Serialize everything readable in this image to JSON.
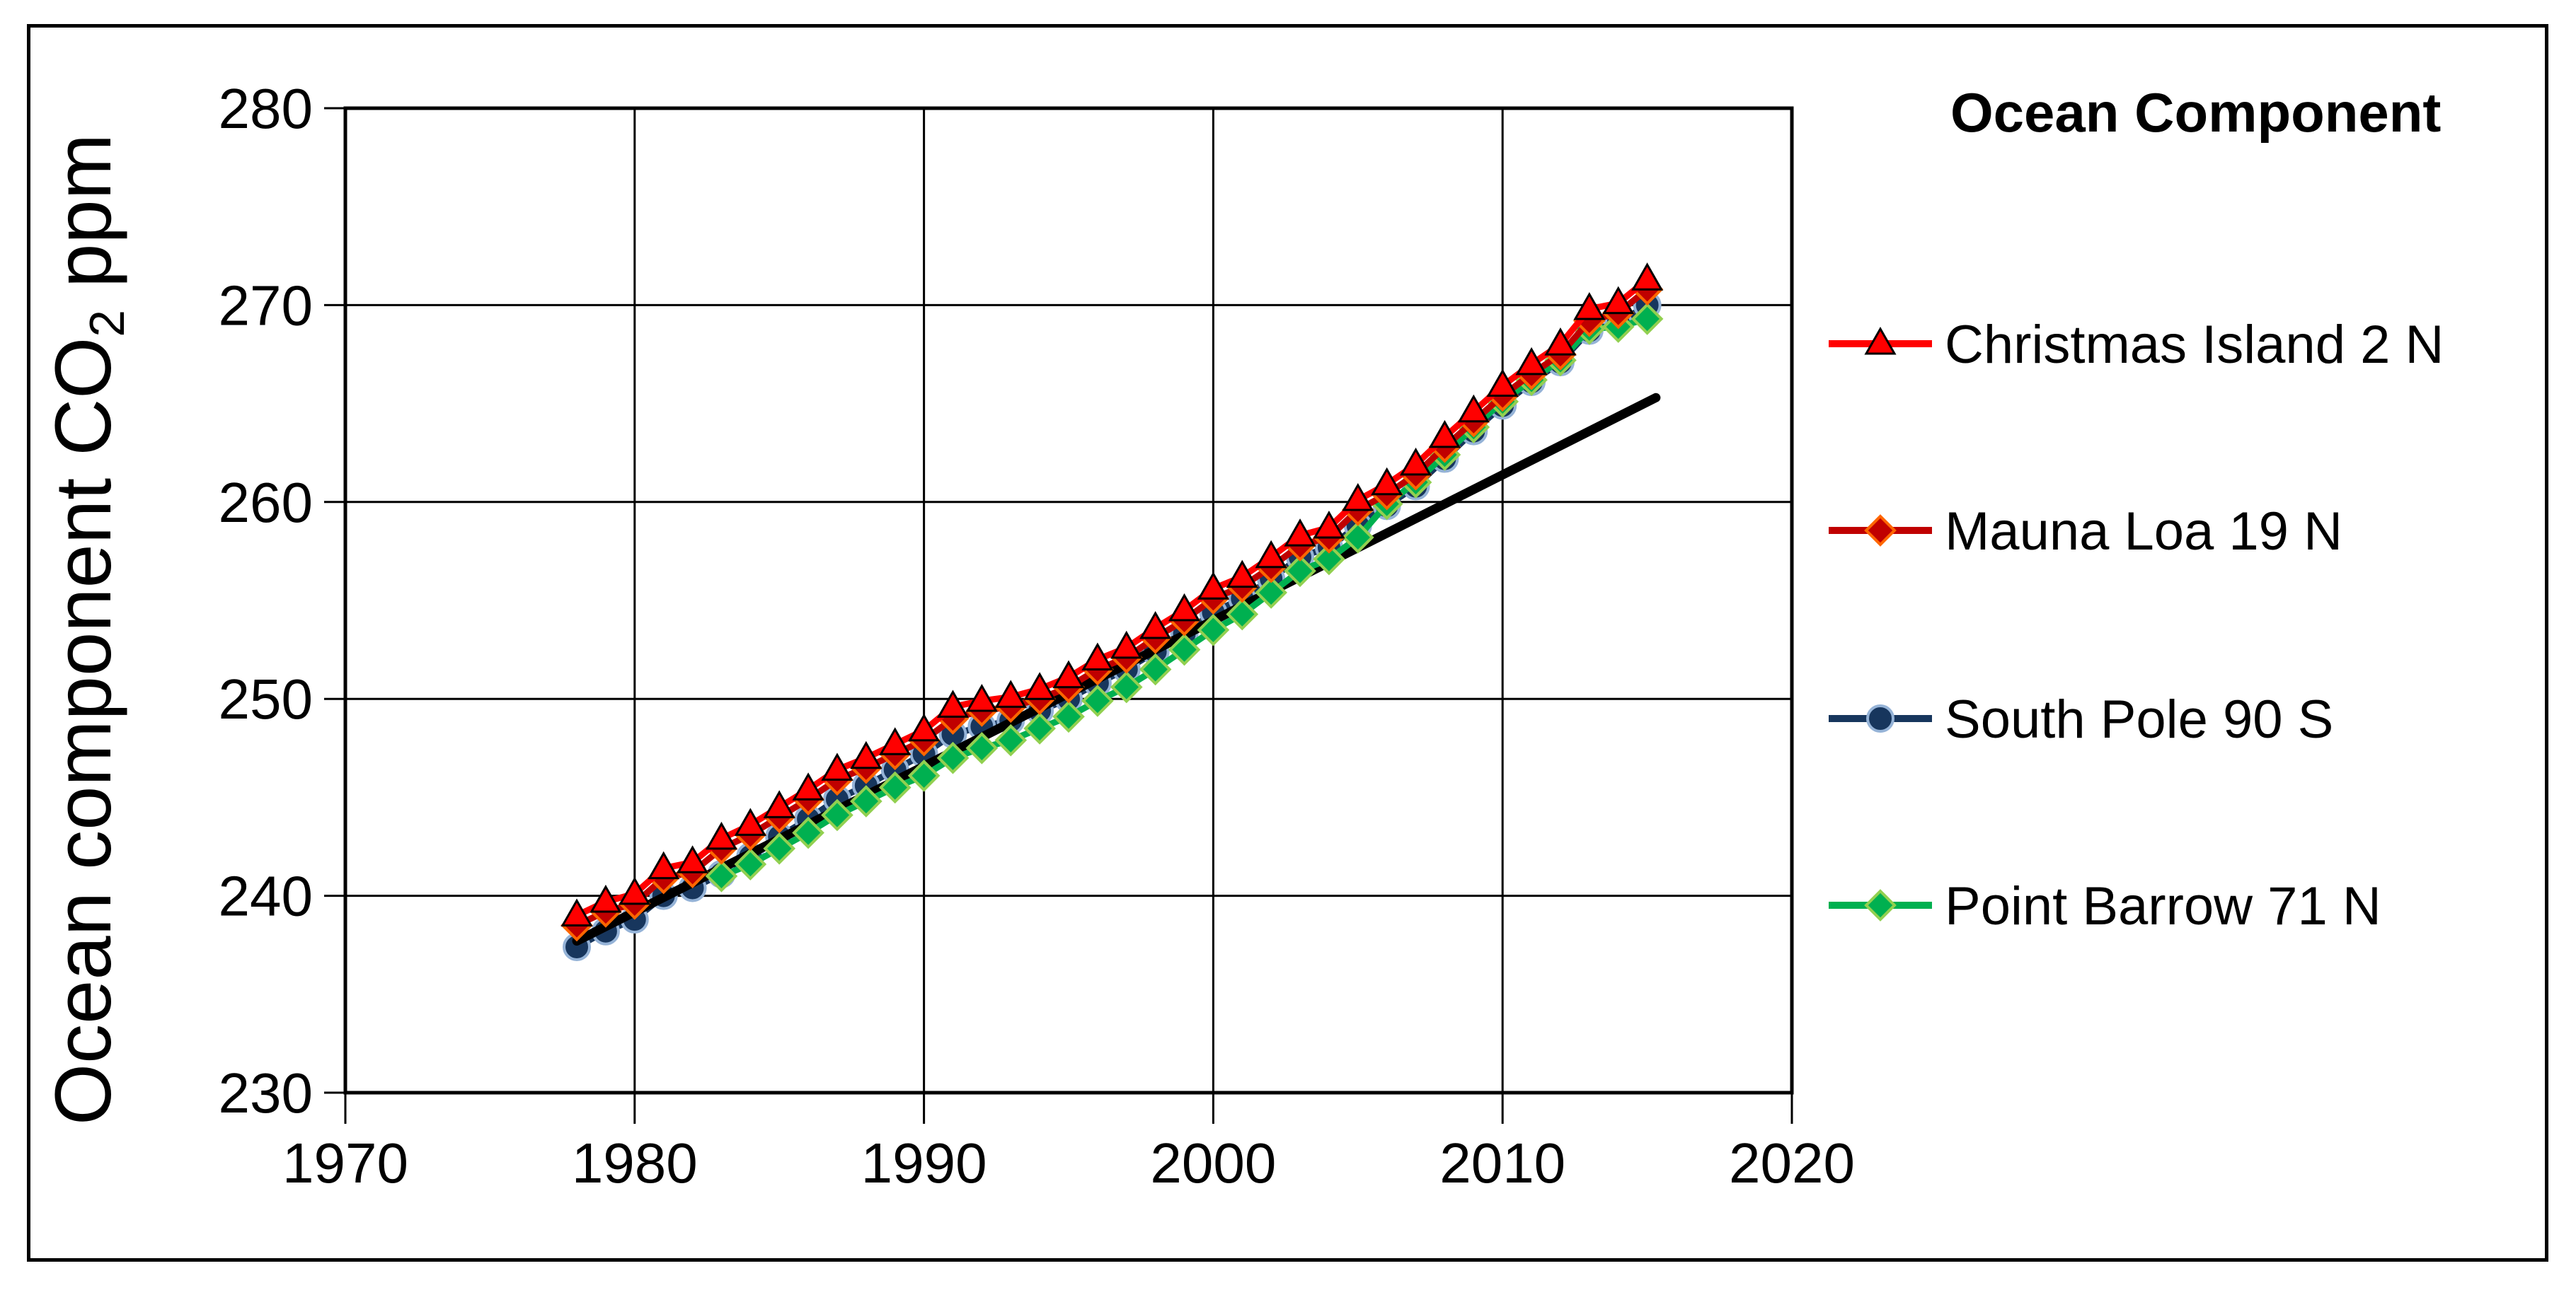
{
  "figure": {
    "background": "#ffffff",
    "border_color": "#000000",
    "y_axis_title_prefix": "Ocean component CO",
    "y_axis_title_sub": "2",
    "y_axis_title_suffix": " ppm"
  },
  "chart_data": {
    "type": "line",
    "legend_title": "Ocean Component",
    "legend_position": "right",
    "grid": true,
    "xlabel": "",
    "ylabel": "Ocean component CO2 ppm",
    "xlim": [
      1970,
      2020
    ],
    "ylim": [
      230,
      280
    ],
    "x_ticks": [
      "1970",
      "1980",
      "1990",
      "2000",
      "2010",
      "2020"
    ],
    "y_ticks": [
      "230",
      "240",
      "250",
      "260",
      "270",
      "280"
    ],
    "x": [
      1978,
      1979,
      1980,
      1981,
      1982,
      1983,
      1984,
      1985,
      1986,
      1987,
      1988,
      1989,
      1990,
      1991,
      1992,
      1993,
      1994,
      1995,
      1996,
      1997,
      1998,
      1999,
      2000,
      2001,
      2002,
      2003,
      2004,
      2005,
      2006,
      2007,
      2008,
      2009,
      2010,
      2011,
      2012,
      2013,
      2014,
      2015
    ],
    "series": [
      {
        "name": "South Pole 90 S",
        "line_color": "#17365D",
        "marker_shape": "circle",
        "marker_fill": "#17365D",
        "marker_edge": "#95B3D7",
        "values": [
          237.4,
          238.2,
          238.8,
          240.0,
          240.4,
          241.1,
          242.0,
          243.0,
          243.9,
          244.9,
          245.6,
          246.4,
          247.2,
          248.2,
          248.6,
          248.9,
          249.4,
          250.0,
          250.8,
          251.5,
          252.4,
          253.3,
          254.4,
          255.1,
          256.1,
          257.2,
          257.7,
          258.8,
          259.8,
          260.8,
          262.2,
          263.6,
          264.9,
          266.1,
          267.1,
          268.7,
          269.1,
          270.0
        ]
      },
      {
        "name": "Point Barrow 71 N",
        "line_color": "#00B050",
        "marker_shape": "diamond",
        "marker_fill": "#00B050",
        "marker_edge": "#92D050",
        "values": [
          null,
          null,
          null,
          null,
          null,
          241.0,
          241.6,
          242.4,
          243.2,
          244.1,
          244.8,
          245.5,
          246.1,
          247.0,
          247.5,
          247.9,
          248.5,
          249.1,
          249.9,
          250.6,
          251.5,
          252.5,
          253.5,
          254.3,
          255.4,
          256.5,
          257.1,
          258.2,
          259.9,
          261.0,
          262.4,
          263.8,
          265.1,
          266.2,
          267.2,
          268.8,
          268.9,
          269.3
        ]
      },
      {
        "name": "Mauna Loa 19 N",
        "line_color": "#C00000",
        "marker_shape": "diamond",
        "marker_fill": "#C00000",
        "marker_edge": "#FF6600",
        "values": [
          238.5,
          239.2,
          239.6,
          240.9,
          241.2,
          242.4,
          243.1,
          244.0,
          244.9,
          245.9,
          246.5,
          247.2,
          247.9,
          249.0,
          249.4,
          249.6,
          250.0,
          250.6,
          251.5,
          252.1,
          253.1,
          254.0,
          255.1,
          255.7,
          256.7,
          257.8,
          258.2,
          259.6,
          260.4,
          261.4,
          262.8,
          264.1,
          265.4,
          266.5,
          267.5,
          269.2,
          269.6,
          270.8
        ]
      },
      {
        "name": "Christmas Island 2 N",
        "line_color": "#FF0000",
        "marker_shape": "triangle",
        "marker_fill": "#FF0000",
        "marker_edge": "#000000",
        "values": [
          239.0,
          239.7,
          240.1,
          241.4,
          241.7,
          242.9,
          243.6,
          244.5,
          245.4,
          246.4,
          247.0,
          247.7,
          248.4,
          249.6,
          249.9,
          250.1,
          250.5,
          251.1,
          252.0,
          252.6,
          253.6,
          254.5,
          255.6,
          256.2,
          257.2,
          258.3,
          258.7,
          260.1,
          260.9,
          261.9,
          263.3,
          264.6,
          265.9,
          267.0,
          268.0,
          269.8,
          270.1,
          271.3
        ]
      }
    ],
    "legend_order": [
      "Christmas Island 2 N",
      "Mauna Loa 19 N",
      "South Pole 90 S",
      "Point Barrow 71 N"
    ],
    "trendline": {
      "name": "linear-trend",
      "color": "#000000",
      "points": [
        [
          1978.0,
          237.7
        ],
        [
          2015.3,
          265.3
        ]
      ]
    }
  }
}
